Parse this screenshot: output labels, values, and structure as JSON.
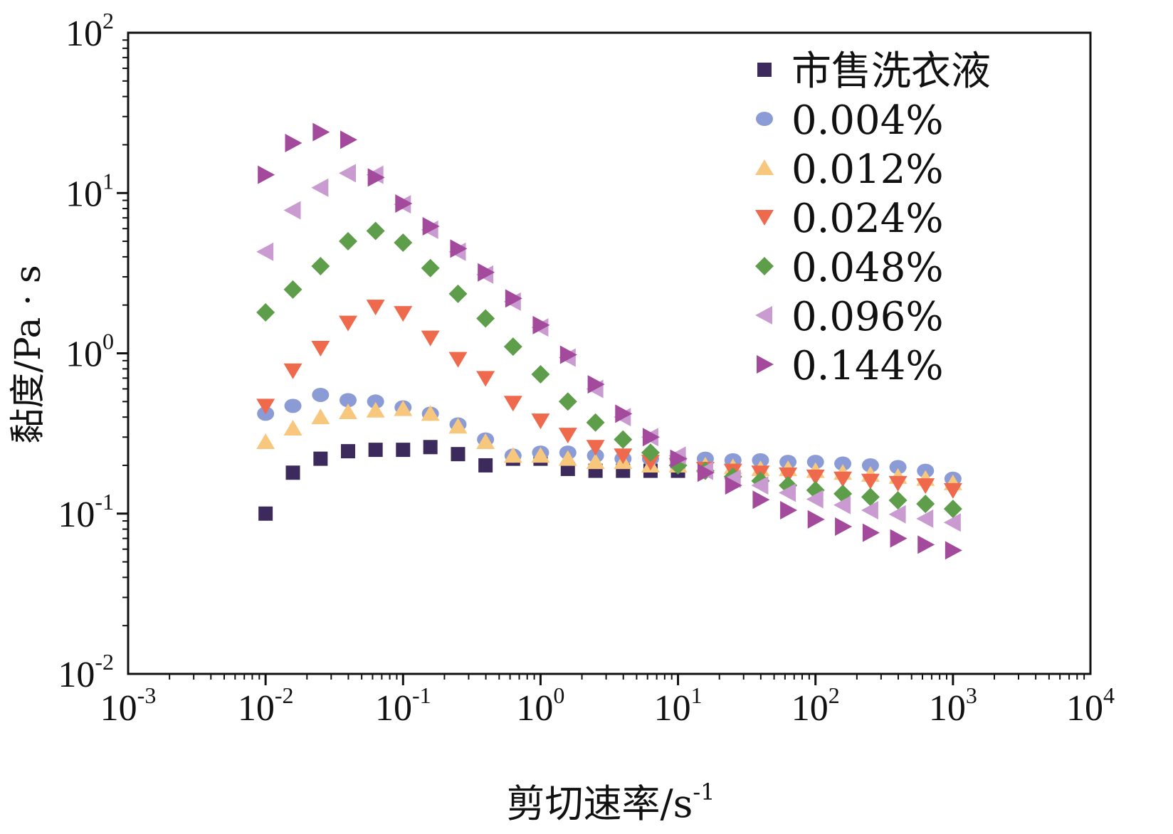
{
  "chart_data": {
    "type": "scatter",
    "x_scale": "log",
    "y_scale": "log",
    "xlabel": "剪切速率/s",
    "xlabel_sup": "-1",
    "ylabel": "黏度/Pa · s",
    "xlim": [
      0.001,
      10000
    ],
    "ylim": [
      0.01,
      100
    ],
    "x_ticks": [
      {
        "base": "10",
        "exp": "-3"
      },
      {
        "base": "10",
        "exp": "-2"
      },
      {
        "base": "10",
        "exp": "-1"
      },
      {
        "base": "10",
        "exp": "0"
      },
      {
        "base": "10",
        "exp": "1"
      },
      {
        "base": "10",
        "exp": "2"
      },
      {
        "base": "10",
        "exp": "3"
      },
      {
        "base": "10",
        "exp": "4"
      }
    ],
    "y_ticks": [
      {
        "base": "10",
        "exp": "-2"
      },
      {
        "base": "10",
        "exp": "-1"
      },
      {
        "base": "10",
        "exp": "0"
      },
      {
        "base": "10",
        "exp": "1"
      },
      {
        "base": "10",
        "exp": "2"
      }
    ],
    "legend_position": "top-right",
    "x": [
      0.01,
      0.0158,
      0.0251,
      0.0398,
      0.0631,
      0.1,
      0.158,
      0.251,
      0.398,
      0.631,
      1,
      1.58,
      2.51,
      3.98,
      6.31,
      10,
      15.8,
      25.1,
      39.8,
      63.1,
      100,
      158,
      251,
      398,
      631,
      1000
    ],
    "series": [
      {
        "name": "市售洗衣液",
        "marker": "square",
        "color": "#3d2a5c",
        "values": [
          0.1,
          0.18,
          0.22,
          0.245,
          0.25,
          0.25,
          0.26,
          0.235,
          0.2,
          0.22,
          0.22,
          0.19,
          0.185,
          0.185,
          0.185,
          0.185,
          null,
          null,
          null,
          null,
          null,
          null,
          null,
          null,
          null,
          null
        ]
      },
      {
        "name": "0.004%",
        "marker": "circle",
        "color": "#8a9bd6",
        "values": [
          0.42,
          0.47,
          0.55,
          0.51,
          0.5,
          0.46,
          0.42,
          0.36,
          0.29,
          0.23,
          0.24,
          0.24,
          0.23,
          0.22,
          0.22,
          0.22,
          0.22,
          0.215,
          0.215,
          0.21,
          0.21,
          0.205,
          0.2,
          0.195,
          0.185,
          0.165
        ]
      },
      {
        "name": "0.012%",
        "marker": "triangle-up",
        "color": "#f8c77e",
        "values": [
          0.28,
          0.34,
          0.4,
          0.43,
          0.44,
          0.45,
          0.42,
          0.35,
          0.28,
          0.23,
          0.23,
          0.22,
          0.21,
          0.21,
          0.2,
          0.2,
          0.2,
          0.195,
          0.19,
          0.19,
          0.185,
          0.18,
          0.175,
          0.17,
          0.165,
          0.155
        ]
      },
      {
        "name": "0.024%",
        "marker": "triangle-down",
        "color": "#ef6a4c",
        "values": [
          0.47,
          0.78,
          1.08,
          1.55,
          1.95,
          1.78,
          1.25,
          0.92,
          0.7,
          0.49,
          0.38,
          0.31,
          0.26,
          0.23,
          0.21,
          0.2,
          0.19,
          0.185,
          0.18,
          0.175,
          0.17,
          0.165,
          0.16,
          0.155,
          0.15,
          0.14
        ]
      },
      {
        "name": "0.048%",
        "marker": "diamond",
        "color": "#5e9e4a",
        "values": [
          1.8,
          2.5,
          3.5,
          5.0,
          5.8,
          4.9,
          3.4,
          2.35,
          1.65,
          1.1,
          0.74,
          0.5,
          0.37,
          0.29,
          0.24,
          0.2,
          0.185,
          0.17,
          0.16,
          0.15,
          0.14,
          0.133,
          0.127,
          0.121,
          0.115,
          0.107
        ]
      },
      {
        "name": "0.096%",
        "marker": "triangle-left",
        "color": "#c99bd0",
        "values": [
          4.3,
          7.8,
          10.8,
          13.3,
          13.0,
          8.5,
          5.9,
          4.3,
          3.1,
          2.1,
          1.45,
          0.94,
          0.6,
          0.4,
          0.3,
          0.23,
          0.185,
          0.165,
          0.15,
          0.135,
          0.123,
          0.113,
          0.105,
          0.099,
          0.093,
          0.088
        ]
      },
      {
        "name": "0.144%",
        "marker": "triangle-right",
        "color": "#a34a9c",
        "values": [
          13.0,
          20.5,
          24.0,
          21.5,
          12.5,
          8.6,
          6.2,
          4.5,
          3.2,
          2.2,
          1.5,
          0.98,
          0.64,
          0.42,
          0.3,
          0.22,
          0.18,
          0.15,
          0.122,
          0.105,
          0.092,
          0.083,
          0.076,
          0.07,
          0.064,
          0.059
        ]
      }
    ]
  }
}
